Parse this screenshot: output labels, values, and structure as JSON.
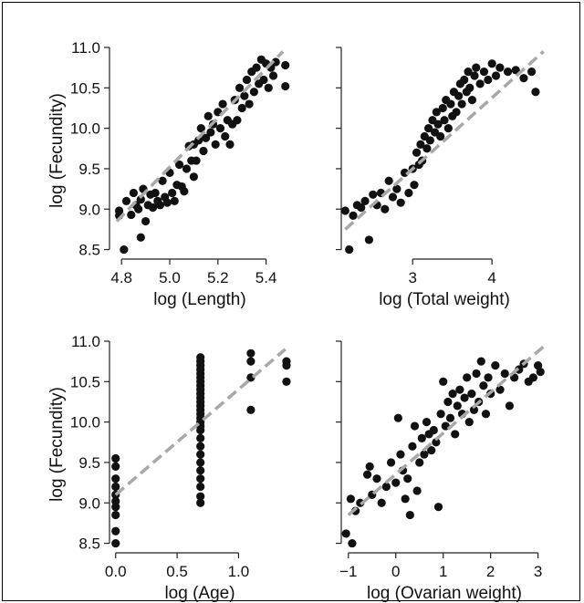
{
  "chart_data": [
    {
      "type": "scatter",
      "xlabel": "log (Length)",
      "ylabel": "log (Fecundity)",
      "xlim": [
        4.75,
        5.5
      ],
      "ylim": [
        8.45,
        11.0
      ],
      "xticks": [
        "4.8",
        "5.0",
        "5.2",
        "5.4"
      ],
      "yticks": [
        "8.5",
        "9.0",
        "9.5",
        "10.0",
        "10.5",
        "11.0"
      ],
      "trend": [
        [
          4.78,
          8.85
        ],
        [
          5.47,
          10.95
        ]
      ],
      "points": [
        [
          4.79,
          8.98
        ],
        [
          4.79,
          8.92
        ],
        [
          4.81,
          8.5
        ],
        [
          4.82,
          9.1
        ],
        [
          4.84,
          8.93
        ],
        [
          4.85,
          9.2
        ],
        [
          4.86,
          9.05
        ],
        [
          4.87,
          9.0
        ],
        [
          4.88,
          9.12
        ],
        [
          4.88,
          8.65
        ],
        [
          4.89,
          9.25
        ],
        [
          4.9,
          8.85
        ],
        [
          4.91,
          9.05
        ],
        [
          4.92,
          9.18
        ],
        [
          4.93,
          9.02
        ],
        [
          4.94,
          9.2
        ],
        [
          4.95,
          9.1
        ],
        [
          4.96,
          9.05
        ],
        [
          4.97,
          9.35
        ],
        [
          4.98,
          9.15
        ],
        [
          4.99,
          9.08
        ],
        [
          5.0,
          9.45
        ],
        [
          5.01,
          9.2
        ],
        [
          5.02,
          9.1
        ],
        [
          5.03,
          9.3
        ],
        [
          5.04,
          9.55
        ],
        [
          5.05,
          9.28
        ],
        [
          5.06,
          9.22
        ],
        [
          5.07,
          9.5
        ],
        [
          5.08,
          9.78
        ],
        [
          5.09,
          9.6
        ],
        [
          5.1,
          9.4
        ],
        [
          5.1,
          9.8
        ],
        [
          5.11,
          9.6
        ],
        [
          5.12,
          9.85
        ],
        [
          5.13,
          10.0
        ],
        [
          5.14,
          9.72
        ],
        [
          5.15,
          9.88
        ],
        [
          5.16,
          10.15
        ],
        [
          5.17,
          9.95
        ],
        [
          5.18,
          10.05
        ],
        [
          5.19,
          9.8
        ],
        [
          5.2,
          10.2
        ],
        [
          5.21,
          10.0
        ],
        [
          5.22,
          10.3
        ],
        [
          5.23,
          9.9
        ],
        [
          5.24,
          10.1
        ],
        [
          5.25,
          9.8
        ],
        [
          5.26,
          10.05
        ],
        [
          5.27,
          10.35
        ],
        [
          5.28,
          10.1
        ],
        [
          5.29,
          10.5
        ],
        [
          5.3,
          10.25
        ],
        [
          5.31,
          10.4
        ],
        [
          5.32,
          10.6
        ],
        [
          5.33,
          10.3
        ],
        [
          5.34,
          10.7
        ],
        [
          5.35,
          10.45
        ],
        [
          5.36,
          10.75
        ],
        [
          5.37,
          10.55
        ],
        [
          5.38,
          10.85
        ],
        [
          5.39,
          10.6
        ],
        [
          5.4,
          10.8
        ],
        [
          5.41,
          10.5
        ],
        [
          5.42,
          10.75
        ],
        [
          5.43,
          10.65
        ],
        [
          5.44,
          10.82
        ],
        [
          5.48,
          10.52
        ],
        [
          5.48,
          10.78
        ]
      ]
    },
    {
      "type": "scatter",
      "xlabel": "log (Total weight)",
      "ylabel": "",
      "xlim": [
        2.1,
        4.7
      ],
      "ylim": [
        8.45,
        11.0
      ],
      "xticks": [
        "3",
        "4"
      ],
      "yticks": [],
      "trend": [
        [
          2.15,
          8.75
        ],
        [
          4.65,
          10.95
        ]
      ],
      "points": [
        [
          2.15,
          8.98
        ],
        [
          2.2,
          8.5
        ],
        [
          2.25,
          8.92
        ],
        [
          2.3,
          9.05
        ],
        [
          2.35,
          9.02
        ],
        [
          2.4,
          9.1
        ],
        [
          2.45,
          8.62
        ],
        [
          2.5,
          9.18
        ],
        [
          2.55,
          9.05
        ],
        [
          2.6,
          9.2
        ],
        [
          2.65,
          9.0
        ],
        [
          2.7,
          9.35
        ],
        [
          2.75,
          9.15
        ],
        [
          2.8,
          9.25
        ],
        [
          2.85,
          9.08
        ],
        [
          2.9,
          9.45
        ],
        [
          2.95,
          9.2
        ],
        [
          3.0,
          9.5
        ],
        [
          3.02,
          9.3
        ],
        [
          3.05,
          9.7
        ],
        [
          3.08,
          9.55
        ],
        [
          3.1,
          9.8
        ],
        [
          3.12,
          9.6
        ],
        [
          3.15,
          9.9
        ],
        [
          3.18,
          9.75
        ],
        [
          3.2,
          10.0
        ],
        [
          3.22,
          9.85
        ],
        [
          3.25,
          10.1
        ],
        [
          3.28,
          9.95
        ],
        [
          3.3,
          10.2
        ],
        [
          3.32,
          10.05
        ],
        [
          3.35,
          9.9
        ],
        [
          3.38,
          10.25
        ],
        [
          3.4,
          10.1
        ],
        [
          3.42,
          10.35
        ],
        [
          3.45,
          10.0
        ],
        [
          3.48,
          10.3
        ],
        [
          3.5,
          10.15
        ],
        [
          3.52,
          10.45
        ],
        [
          3.55,
          10.2
        ],
        [
          3.58,
          10.4
        ],
        [
          3.6,
          10.55
        ],
        [
          3.62,
          10.3
        ],
        [
          3.65,
          10.6
        ],
        [
          3.68,
          10.45
        ],
        [
          3.7,
          10.7
        ],
        [
          3.72,
          10.5
        ],
        [
          3.75,
          10.35
        ],
        [
          3.78,
          10.65
        ],
        [
          3.8,
          10.75
        ],
        [
          3.85,
          10.55
        ],
        [
          3.9,
          10.7
        ],
        [
          3.95,
          10.6
        ],
        [
          4.0,
          10.8
        ],
        [
          4.05,
          10.65
        ],
        [
          4.1,
          10.75
        ],
        [
          4.2,
          10.7
        ],
        [
          4.3,
          10.72
        ],
        [
          4.4,
          10.62
        ],
        [
          4.5,
          10.7
        ],
        [
          4.55,
          10.45
        ]
      ]
    },
    {
      "type": "scatter",
      "xlabel": "log (Age)",
      "ylabel": "log (Fecundity)",
      "xlim": [
        -0.05,
        1.42
      ],
      "ylim": [
        8.45,
        11.0
      ],
      "xticks": [
        "0.0",
        "0.5",
        "1.0"
      ],
      "yticks": [
        "8.5",
        "9.0",
        "9.5",
        "10.0",
        "10.5",
        "11.0"
      ],
      "trend": [
        [
          0.0,
          9.1
        ],
        [
          1.38,
          10.9
        ]
      ],
      "points": [
        [
          0,
          8.5
        ],
        [
          0,
          8.65
        ],
        [
          0,
          8.85
        ],
        [
          0,
          8.95
        ],
        [
          0,
          9.02
        ],
        [
          0,
          9.1
        ],
        [
          0,
          9.2
        ],
        [
          0,
          9.3
        ],
        [
          0,
          9.45
        ],
        [
          0,
          9.55
        ],
        [
          0.69,
          9.0
        ],
        [
          0.69,
          9.08
        ],
        [
          0.69,
          9.2
        ],
        [
          0.69,
          9.3
        ],
        [
          0.69,
          9.4
        ],
        [
          0.69,
          9.5
        ],
        [
          0.69,
          9.6
        ],
        [
          0.69,
          9.7
        ],
        [
          0.69,
          9.8
        ],
        [
          0.69,
          9.9
        ],
        [
          0.69,
          9.95
        ],
        [
          0.69,
          10.0
        ],
        [
          0.69,
          10.05
        ],
        [
          0.69,
          10.1
        ],
        [
          0.69,
          10.15
        ],
        [
          0.69,
          10.2
        ],
        [
          0.69,
          10.25
        ],
        [
          0.69,
          10.3
        ],
        [
          0.69,
          10.35
        ],
        [
          0.69,
          10.4
        ],
        [
          0.69,
          10.45
        ],
        [
          0.69,
          10.5
        ],
        [
          0.69,
          10.55
        ],
        [
          0.69,
          10.6
        ],
        [
          0.69,
          10.65
        ],
        [
          0.69,
          10.7
        ],
        [
          0.69,
          10.75
        ],
        [
          0.69,
          10.8
        ],
        [
          1.1,
          10.15
        ],
        [
          1.1,
          10.55
        ],
        [
          1.1,
          10.75
        ],
        [
          1.1,
          10.85
        ],
        [
          1.39,
          10.5
        ],
        [
          1.39,
          10.7
        ],
        [
          1.39,
          10.75
        ]
      ]
    },
    {
      "type": "scatter",
      "xlabel": "log (Ovarian weight)",
      "ylabel": "",
      "xlim": [
        -1.15,
        3.2
      ],
      "ylim": [
        8.45,
        11.0
      ],
      "xticks": [
        "−1",
        "0",
        "1",
        "2",
        "3"
      ],
      "yticks": [],
      "trend": [
        [
          -1.0,
          8.85
        ],
        [
          3.15,
          10.95
        ]
      ],
      "points": [
        [
          -1.05,
          8.62
        ],
        [
          -0.95,
          9.05
        ],
        [
          -0.92,
          8.5
        ],
        [
          -0.85,
          8.9
        ],
        [
          -0.75,
          9.0
        ],
        [
          -0.6,
          9.35
        ],
        [
          -0.55,
          9.45
        ],
        [
          -0.5,
          9.1
        ],
        [
          -0.4,
          9.3
        ],
        [
          -0.3,
          9.0
        ],
        [
          -0.2,
          9.2
        ],
        [
          -0.1,
          9.5
        ],
        [
          0.0,
          9.25
        ],
        [
          0.05,
          10.05
        ],
        [
          0.1,
          9.6
        ],
        [
          0.15,
          9.4
        ],
        [
          0.2,
          9.05
        ],
        [
          0.25,
          9.3
        ],
        [
          0.3,
          8.85
        ],
        [
          0.35,
          9.7
        ],
        [
          0.4,
          9.95
        ],
        [
          0.45,
          9.15
        ],
        [
          0.5,
          9.5
        ],
        [
          0.55,
          9.8
        ],
        [
          0.6,
          9.6
        ],
        [
          0.65,
          10.0
        ],
        [
          0.7,
          9.85
        ],
        [
          0.75,
          9.65
        ],
        [
          0.8,
          9.9
        ],
        [
          0.85,
          9.75
        ],
        [
          0.9,
          8.95
        ],
        [
          0.95,
          10.1
        ],
        [
          1.0,
          10.5
        ],
        [
          1.05,
          9.95
        ],
        [
          1.1,
          10.25
        ],
        [
          1.15,
          10.05
        ],
        [
          1.2,
          10.35
        ],
        [
          1.25,
          9.85
        ],
        [
          1.3,
          10.2
        ],
        [
          1.35,
          10.4
        ],
        [
          1.4,
          10.1
        ],
        [
          1.45,
          10.3
        ],
        [
          1.5,
          10.55
        ],
        [
          1.55,
          10.0
        ],
        [
          1.6,
          10.35
        ],
        [
          1.65,
          10.15
        ],
        [
          1.7,
          10.6
        ],
        [
          1.75,
          10.25
        ],
        [
          1.8,
          10.75
        ],
        [
          1.85,
          10.45
        ],
        [
          1.9,
          10.1
        ],
        [
          1.95,
          10.55
        ],
        [
          2.0,
          10.35
        ],
        [
          2.1,
          10.7
        ],
        [
          2.2,
          10.4
        ],
        [
          2.3,
          10.6
        ],
        [
          2.4,
          10.2
        ],
        [
          2.5,
          10.55
        ],
        [
          2.6,
          10.65
        ],
        [
          2.7,
          10.72
        ],
        [
          2.8,
          10.5
        ],
        [
          2.9,
          10.55
        ],
        [
          3.0,
          10.7
        ],
        [
          3.05,
          10.62
        ]
      ]
    }
  ]
}
